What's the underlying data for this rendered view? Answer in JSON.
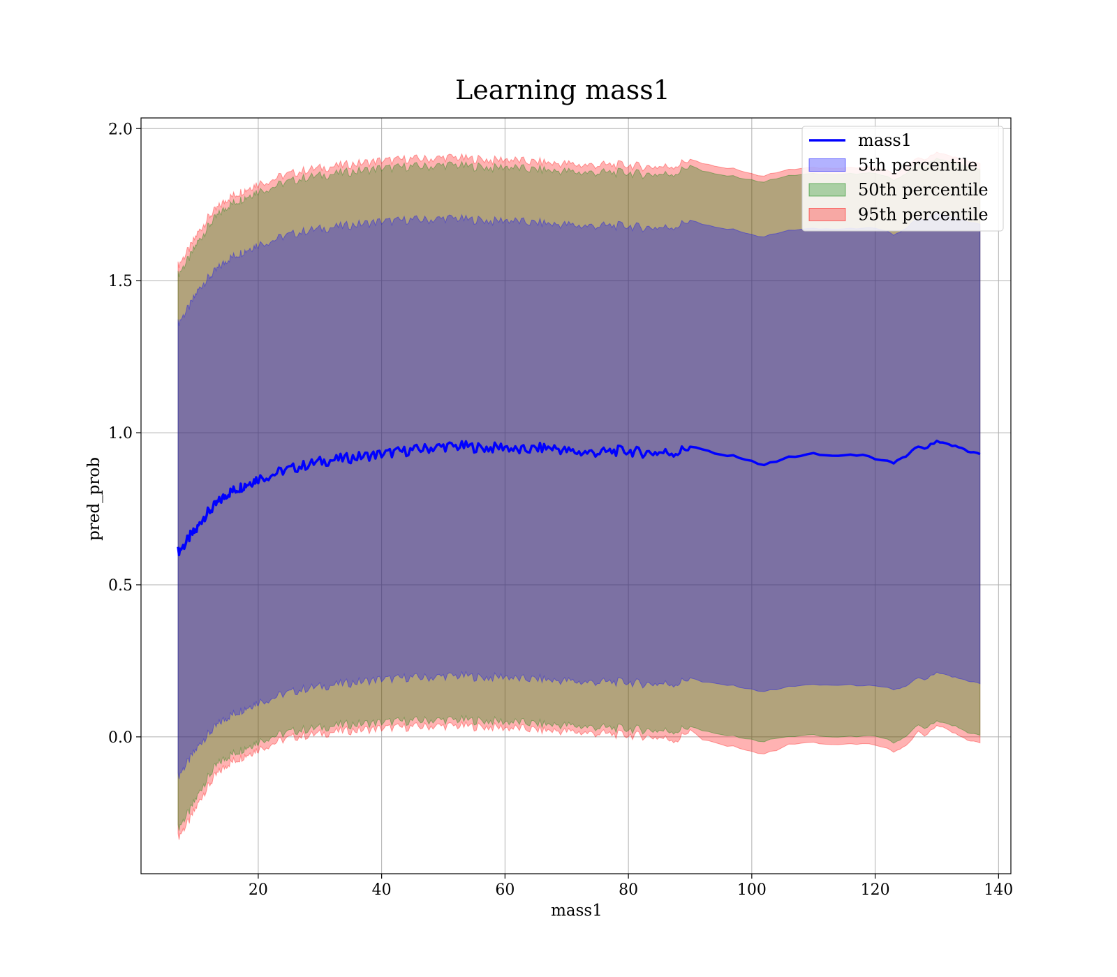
{
  "chart_data": {
    "type": "area",
    "title": "Learning mass1",
    "xlabel": "mass1",
    "ylabel": "pred_prob",
    "xlim": [
      1,
      142
    ],
    "ylim": [
      -0.45,
      2.035
    ],
    "xticks": [
      20,
      40,
      60,
      80,
      100,
      120,
      140
    ],
    "yticks": [
      0.0,
      0.5,
      1.0,
      1.5,
      2.0
    ],
    "xtick_labels": [
      "20",
      "40",
      "60",
      "80",
      "100",
      "120",
      "140"
    ],
    "ytick_labels": [
      "0.0",
      "0.5",
      "1.0",
      "1.5",
      "2.0"
    ],
    "grid": true,
    "legend_position": "top-right",
    "x": [
      7,
      8,
      9,
      10,
      11,
      12,
      13,
      14,
      15,
      16,
      17,
      18,
      19,
      20,
      22,
      24,
      26,
      28,
      30,
      32,
      34,
      36,
      38,
      40,
      42,
      44,
      46,
      48,
      50,
      52,
      54,
      56,
      58,
      60,
      62,
      64,
      66,
      68,
      70,
      72,
      74,
      76,
      78,
      80,
      82,
      84,
      86,
      88,
      90,
      92,
      94,
      96,
      98,
      100,
      102,
      104,
      106,
      108,
      110,
      112,
      114,
      116,
      118,
      120,
      122,
      123,
      124,
      125,
      126,
      127,
      128,
      129,
      130,
      131,
      132,
      133,
      134,
      135,
      136,
      137
    ],
    "series": [
      {
        "name": "mass1",
        "kind": "line",
        "color": "#0000ff",
        "values": [
          0.61,
          0.63,
          0.66,
          0.68,
          0.72,
          0.74,
          0.76,
          0.78,
          0.8,
          0.81,
          0.82,
          0.83,
          0.84,
          0.85,
          0.86,
          0.875,
          0.885,
          0.895,
          0.905,
          0.91,
          0.915,
          0.92,
          0.925,
          0.93,
          0.935,
          0.94,
          0.945,
          0.95,
          0.955,
          0.955,
          0.955,
          0.95,
          0.95,
          0.955,
          0.94,
          0.945,
          0.95,
          0.95,
          0.94,
          0.935,
          0.935,
          0.935,
          0.94,
          0.94,
          0.935,
          0.935,
          0.935,
          0.935,
          0.955,
          0.945,
          0.93,
          0.925,
          0.92,
          0.905,
          0.895,
          0.905,
          0.92,
          0.925,
          0.93,
          0.925,
          0.925,
          0.925,
          0.93,
          0.91,
          0.905,
          0.9,
          0.915,
          0.92,
          0.94,
          0.955,
          0.945,
          0.96,
          0.97,
          0.965,
          0.96,
          0.955,
          0.95,
          0.94,
          0.935,
          0.93
        ]
      }
    ],
    "bands": [
      {
        "name": "95th percentile",
        "color": "#ff0000",
        "alpha": 0.3,
        "lower": [
          -0.33,
          -0.3,
          -0.27,
          -0.23,
          -0.19,
          -0.16,
          -0.13,
          -0.11,
          -0.09,
          -0.08,
          -0.07,
          -0.06,
          -0.05,
          -0.04,
          -0.025,
          -0.01,
          -0.0,
          0.005,
          0.01,
          0.015,
          0.02,
          0.022,
          0.025,
          0.028,
          0.03,
          0.032,
          0.033,
          0.035,
          0.036,
          0.036,
          0.035,
          0.033,
          0.032,
          0.03,
          0.028,
          0.025,
          0.022,
          0.02,
          0.018,
          0.015,
          0.012,
          0.01,
          0.008,
          0.006,
          0.004,
          0.0,
          -0.005,
          -0.01,
          0.025,
          -0.01,
          -0.02,
          -0.03,
          -0.035,
          -0.05,
          -0.055,
          -0.045,
          -0.025,
          -0.02,
          -0.02,
          -0.025,
          -0.025,
          -0.025,
          -0.02,
          -0.03,
          -0.04,
          -0.05,
          -0.04,
          -0.03,
          -0.01,
          0.02,
          0.0,
          0.02,
          0.035,
          0.03,
          0.02,
          0.01,
          0.0,
          -0.01,
          -0.015,
          -0.02
        ],
        "upper": [
          1.55,
          1.58,
          1.61,
          1.65,
          1.68,
          1.71,
          1.73,
          1.75,
          1.77,
          1.78,
          1.79,
          1.8,
          1.81,
          1.82,
          1.83,
          1.845,
          1.855,
          1.865,
          1.87,
          1.875,
          1.88,
          1.885,
          1.89,
          1.895,
          1.895,
          1.9,
          1.9,
          1.9,
          1.905,
          1.905,
          1.9,
          1.9,
          1.895,
          1.9,
          1.895,
          1.89,
          1.89,
          1.885,
          1.885,
          1.88,
          1.88,
          1.88,
          1.88,
          1.88,
          1.875,
          1.875,
          1.875,
          1.88,
          1.9,
          1.885,
          1.875,
          1.87,
          1.865,
          1.85,
          1.845,
          1.855,
          1.865,
          1.87,
          1.87,
          1.87,
          1.87,
          1.87,
          1.875,
          1.87,
          1.86,
          1.85,
          1.86,
          1.87,
          1.89,
          1.905,
          1.895,
          1.91,
          1.92,
          1.915,
          1.91,
          1.905,
          1.9,
          1.895,
          1.89,
          1.885
        ]
      },
      {
        "name": "50th percentile",
        "color": "#008000",
        "alpha": 0.3,
        "lower": [
          -0.3,
          -0.27,
          -0.24,
          -0.2,
          -0.16,
          -0.13,
          -0.1,
          -0.08,
          -0.065,
          -0.055,
          -0.045,
          -0.035,
          -0.025,
          -0.015,
          -0.0,
          0.01,
          0.02,
          0.025,
          0.03,
          0.035,
          0.04,
          0.042,
          0.045,
          0.048,
          0.05,
          0.052,
          0.053,
          0.055,
          0.056,
          0.056,
          0.055,
          0.053,
          0.052,
          0.05,
          0.048,
          0.045,
          0.042,
          0.04,
          0.038,
          0.035,
          0.032,
          0.03,
          0.028,
          0.026,
          0.024,
          0.022,
          0.02,
          0.02,
          0.035,
          0.02,
          0.01,
          0.005,
          0.0,
          -0.01,
          -0.015,
          -0.005,
          0.0,
          0.005,
          0.005,
          0.0,
          0.0,
          0.0,
          0.005,
          0.0,
          -0.01,
          -0.02,
          -0.01,
          0.0,
          0.02,
          0.04,
          0.025,
          0.04,
          0.05,
          0.045,
          0.04,
          0.035,
          0.025,
          0.015,
          0.01,
          0.005
        ],
        "upper": [
          1.52,
          1.55,
          1.58,
          1.62,
          1.65,
          1.68,
          1.705,
          1.725,
          1.745,
          1.755,
          1.765,
          1.775,
          1.785,
          1.795,
          1.805,
          1.82,
          1.83,
          1.84,
          1.845,
          1.85,
          1.855,
          1.86,
          1.865,
          1.87,
          1.87,
          1.875,
          1.875,
          1.875,
          1.88,
          1.88,
          1.875,
          1.875,
          1.87,
          1.875,
          1.87,
          1.865,
          1.865,
          1.86,
          1.86,
          1.855,
          1.855,
          1.855,
          1.855,
          1.855,
          1.85,
          1.85,
          1.85,
          1.855,
          1.88,
          1.86,
          1.85,
          1.845,
          1.84,
          1.83,
          1.825,
          1.835,
          1.845,
          1.85,
          1.85,
          1.85,
          1.85,
          1.85,
          1.855,
          1.85,
          1.84,
          1.83,
          1.84,
          1.85,
          1.87,
          1.885,
          1.875,
          1.89,
          1.9,
          1.895,
          1.89,
          1.885,
          1.88,
          1.875,
          1.87,
          1.865
        ]
      },
      {
        "name": "5th percentile",
        "color": "#0000ff",
        "alpha": 0.3,
        "lower": [
          -0.13,
          -0.1,
          -0.07,
          -0.04,
          -0.01,
          0.01,
          0.03,
          0.05,
          0.065,
          0.075,
          0.085,
          0.095,
          0.105,
          0.115,
          0.125,
          0.14,
          0.15,
          0.16,
          0.165,
          0.17,
          0.175,
          0.18,
          0.185,
          0.19,
          0.19,
          0.195,
          0.195,
          0.195,
          0.2,
          0.2,
          0.2,
          0.195,
          0.195,
          0.2,
          0.19,
          0.19,
          0.19,
          0.185,
          0.185,
          0.18,
          0.18,
          0.18,
          0.18,
          0.18,
          0.175,
          0.175,
          0.175,
          0.175,
          0.195,
          0.18,
          0.175,
          0.17,
          0.165,
          0.155,
          0.15,
          0.155,
          0.165,
          0.17,
          0.17,
          0.17,
          0.17,
          0.17,
          0.17,
          0.165,
          0.16,
          0.155,
          0.16,
          0.165,
          0.18,
          0.195,
          0.185,
          0.2,
          0.21,
          0.205,
          0.2,
          0.195,
          0.19,
          0.185,
          0.18,
          0.175
        ],
        "upper": [
          1.36,
          1.39,
          1.42,
          1.46,
          1.49,
          1.51,
          1.53,
          1.55,
          1.57,
          1.58,
          1.59,
          1.6,
          1.61,
          1.62,
          1.63,
          1.645,
          1.655,
          1.665,
          1.67,
          1.675,
          1.68,
          1.685,
          1.69,
          1.695,
          1.695,
          1.7,
          1.7,
          1.7,
          1.705,
          1.705,
          1.7,
          1.7,
          1.695,
          1.7,
          1.695,
          1.69,
          1.69,
          1.685,
          1.685,
          1.68,
          1.68,
          1.68,
          1.68,
          1.68,
          1.675,
          1.675,
          1.675,
          1.68,
          1.7,
          1.685,
          1.675,
          1.67,
          1.665,
          1.65,
          1.645,
          1.655,
          1.665,
          1.67,
          1.67,
          1.67,
          1.67,
          1.67,
          1.675,
          1.67,
          1.66,
          1.65,
          1.66,
          1.67,
          1.69,
          1.705,
          1.695,
          1.71,
          1.72,
          1.715,
          1.71,
          1.705,
          1.7,
          1.695,
          1.69,
          1.685
        ]
      }
    ],
    "legend": [
      {
        "label": "mass1",
        "kind": "line",
        "color": "#0000ff"
      },
      {
        "label": "5th percentile",
        "kind": "patch",
        "color": "#0000ff"
      },
      {
        "label": "50th percentile",
        "kind": "patch",
        "color": "#008000"
      },
      {
        "label": "95th percentile",
        "kind": "patch",
        "color": "#ff0000"
      }
    ]
  }
}
